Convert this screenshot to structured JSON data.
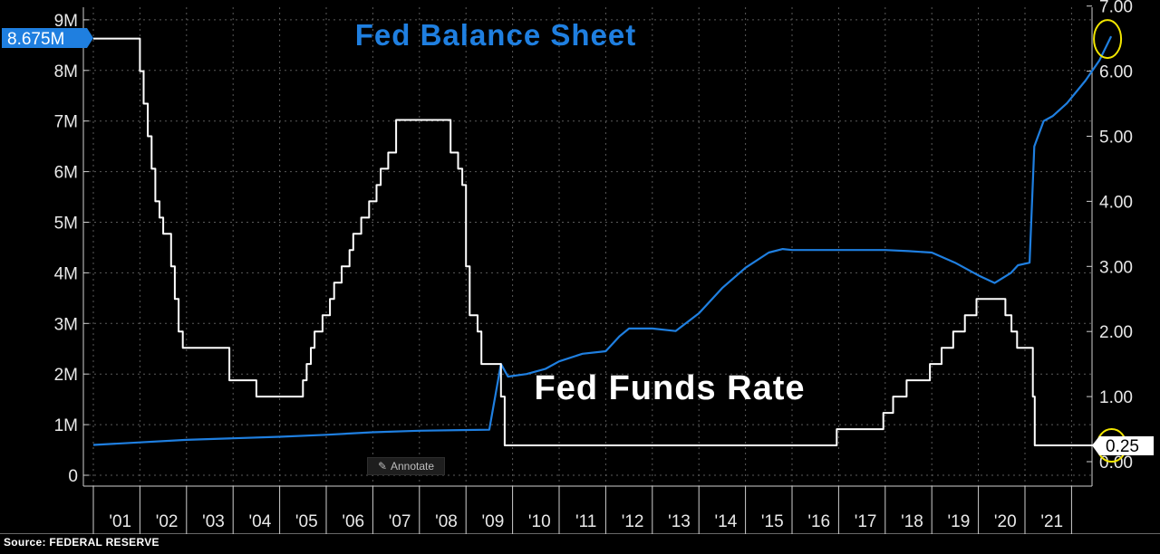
{
  "title": "Fed Balance Sheet",
  "annotation": "Fed Funds Rate",
  "source_label": "Source: FEDERAL RESERVE",
  "annotate_button": "Annotate",
  "last_values": {
    "balance": "8.675M",
    "rate": "0.25"
  },
  "colors": {
    "balance": "#1f7fe0",
    "rate": "#ffffff",
    "highlight": "#f2e600",
    "background": "#000000"
  },
  "chart_data": {
    "type": "line",
    "title": "Fed Balance Sheet",
    "x_tick_labels": [
      "'01",
      "'02",
      "'03",
      "'04",
      "'05",
      "'06",
      "'07",
      "'08",
      "'09",
      "'10",
      "'11",
      "'12",
      "'13",
      "'14",
      "'15",
      "'16",
      "'17",
      "'18",
      "'19",
      "'20",
      "'21"
    ],
    "y_left": {
      "ticks": [
        "0",
        "1M",
        "2M",
        "3M",
        "4M",
        "5M",
        "6M",
        "7M",
        "8M",
        "9M"
      ],
      "range": [
        0,
        9
      ]
    },
    "y_right": {
      "ticks": [
        "0.00",
        "1.00",
        "2.00",
        "3.00",
        "4.00",
        "5.00",
        "6.00",
        "7.00"
      ],
      "range": [
        0,
        7
      ]
    },
    "grid": true,
    "series": [
      {
        "name": "Fed Balance Sheet",
        "axis": "left",
        "unit": "millions (M)",
        "x": [
          2000.0,
          2001.0,
          2002.0,
          2003.0,
          2004.0,
          2005.0,
          2006.0,
          2007.0,
          2008.5,
          2008.75,
          2008.9,
          2009.3,
          2009.7,
          2010.0,
          2010.5,
          2011.0,
          2011.3,
          2011.5,
          2012.0,
          2012.5,
          2013.0,
          2013.5,
          2014.0,
          2014.5,
          2014.8,
          2015.0,
          2016.0,
          2017.0,
          2017.5,
          2018.0,
          2018.5,
          2019.0,
          2019.35,
          2019.7,
          2019.85,
          2020.1,
          2020.2,
          2020.4,
          2020.6,
          2020.9,
          2021.3,
          2021.6,
          2021.85
        ],
        "values": [
          0.6,
          0.65,
          0.7,
          0.73,
          0.76,
          0.8,
          0.85,
          0.88,
          0.9,
          2.2,
          1.95,
          2.0,
          2.1,
          2.25,
          2.4,
          2.45,
          2.75,
          2.9,
          2.9,
          2.85,
          3.2,
          3.7,
          4.1,
          4.4,
          4.47,
          4.45,
          4.45,
          4.45,
          4.43,
          4.4,
          4.2,
          3.95,
          3.8,
          4.0,
          4.15,
          4.2,
          6.5,
          7.0,
          7.1,
          7.35,
          7.8,
          8.2,
          8.675
        ]
      },
      {
        "name": "Fed Funds Rate",
        "axis": "right",
        "unit": "percent",
        "step": true,
        "x": [
          2000.0,
          2001.0,
          2001.08,
          2001.17,
          2001.25,
          2001.33,
          2001.42,
          2001.5,
          2001.67,
          2001.75,
          2001.83,
          2001.92,
          2002.92,
          2003.5,
          2004.5,
          2004.58,
          2004.67,
          2004.75,
          2004.92,
          2005.08,
          2005.17,
          2005.33,
          2005.5,
          2005.58,
          2005.75,
          2005.92,
          2006.08,
          2006.17,
          2006.33,
          2006.5,
          2007.67,
          2007.83,
          2007.92,
          2008.0,
          2008.08,
          2008.25,
          2008.33,
          2008.75,
          2008.83,
          2008.96,
          2015.96,
          2016.96,
          2017.17,
          2017.46,
          2017.96,
          2018.21,
          2018.46,
          2018.71,
          2018.96,
          2019.58,
          2019.71,
          2019.83,
          2020.17,
          2020.21,
          2021.9
        ],
        "values": [
          6.5,
          6.0,
          5.5,
          5.0,
          4.5,
          4.0,
          3.75,
          3.5,
          3.0,
          2.5,
          2.0,
          1.75,
          1.25,
          1.0,
          1.25,
          1.5,
          1.75,
          2.0,
          2.25,
          2.5,
          2.75,
          3.0,
          3.25,
          3.5,
          3.75,
          4.0,
          4.25,
          4.5,
          4.75,
          5.25,
          4.75,
          4.5,
          4.25,
          3.0,
          2.25,
          2.0,
          1.5,
          1.0,
          0.25,
          0.25,
          0.5,
          0.75,
          1.0,
          1.25,
          1.5,
          1.75,
          2.0,
          2.25,
          2.5,
          2.25,
          2.0,
          1.75,
          1.0,
          0.25,
          0.25
        ]
      }
    ]
  }
}
